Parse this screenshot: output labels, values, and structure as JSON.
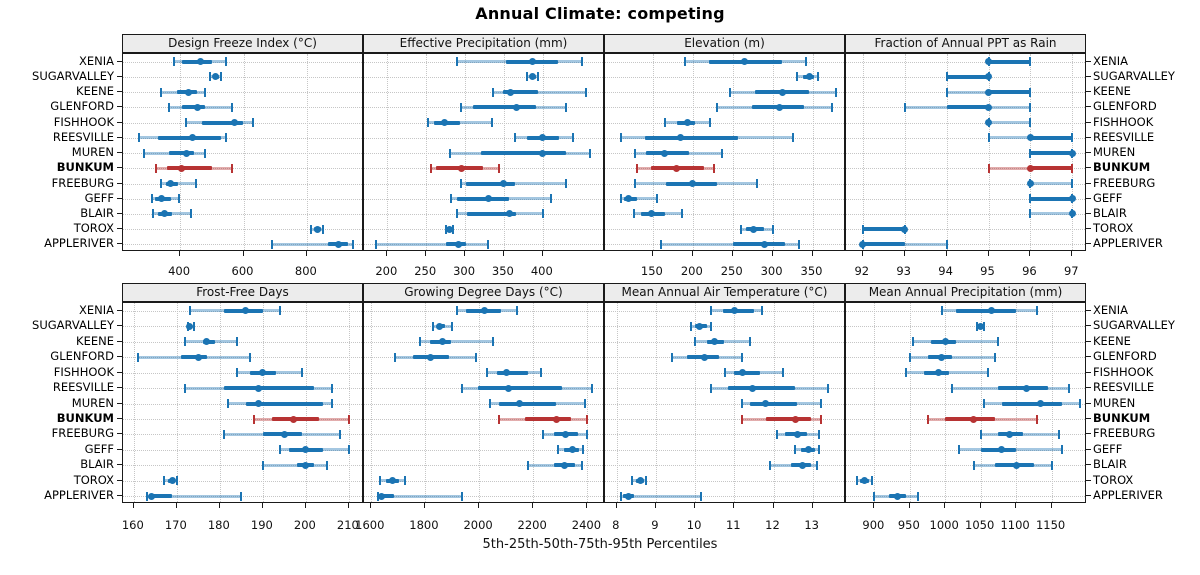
{
  "title": "Annual Climate: competing",
  "caption": "5th-25th-50th-75th-95th Percentiles",
  "stations": [
    "XENIA",
    "SUGARVALLEY",
    "KEENE",
    "GLENFORD",
    "FISHHOOK",
    "REESVILLE",
    "MUREN",
    "BUNKUM",
    "FREEBURG",
    "GEFF",
    "BLAIR",
    "TOROX",
    "APPLERIVER"
  ],
  "highlight_station": "BUNKUM",
  "highlight_index": 7,
  "percentiles": [
    "5th",
    "25th",
    "50th",
    "75th",
    "95th"
  ],
  "colors": {
    "series": "#1b74b3",
    "series_light": "rgba(27,116,179,0.40)",
    "highlight": "#b73333",
    "highlight_light": "rgba(183,51,51,0.40)",
    "strip_bg": "#ececec",
    "panel_border": "#1a1a1a",
    "grid": "#c6c6c6",
    "text": "#111111"
  },
  "chart_data": [
    {
      "type": "interval-dotplot",
      "panel_title": "Design Freeze Index (°C)",
      "row": 0,
      "col": 0,
      "xlim": [
        220,
        980
      ],
      "ticks": [
        400,
        600,
        800
      ],
      "series": [
        [
          380,
          405,
          465,
          500,
          545
        ],
        [
          495,
          505,
          513,
          522,
          530
        ],
        [
          340,
          390,
          425,
          455,
          480
        ],
        [
          365,
          405,
          455,
          480,
          565
        ],
        [
          420,
          470,
          570,
          600,
          630
        ],
        [
          270,
          330,
          440,
          530,
          545
        ],
        [
          285,
          365,
          420,
          445,
          480
        ],
        [
          325,
          360,
          405,
          500,
          565
        ],
        [
          340,
          355,
          370,
          395,
          450
        ],
        [
          310,
          320,
          340,
          370,
          395
        ],
        [
          315,
          330,
          350,
          375,
          435
        ],
        [
          812,
          822,
          832,
          843,
          850
        ],
        [
          690,
          865,
          900,
          930,
          945
        ]
      ]
    },
    {
      "type": "interval-dotplot",
      "panel_title": "Effective Precipitation (mm)",
      "row": 0,
      "col": 1,
      "xlim": [
        170,
        480
      ],
      "ticks": [
        200,
        250,
        300,
        350,
        400
      ],
      "series": [
        [
          290,
          353,
          387,
          420,
          450
        ],
        [
          379,
          384,
          387,
          391,
          394
        ],
        [
          336,
          349,
          359,
          394,
          456
        ],
        [
          295,
          310,
          366,
          392,
          430
        ],
        [
          252,
          260,
          273,
          293,
          335
        ],
        [
          364,
          379,
          400,
          421,
          439
        ],
        [
          280,
          320,
          400,
          430,
          460
        ],
        [
          256,
          263,
          295,
          323,
          344
        ],
        [
          295,
          301,
          349,
          364,
          430
        ],
        [
          282,
          290,
          330,
          357,
          410
        ],
        [
          290,
          303,
          357,
          366,
          400
        ],
        [
          275,
          277,
          280,
          282,
          284
        ],
        [
          185,
          275,
          291,
          301,
          330
        ]
      ]
    },
    {
      "type": "interval-dotplot",
      "panel_title": "Elevation (m)",
      "row": 0,
      "col": 2,
      "xlim": [
        90,
        392
      ],
      "ticks": [
        150,
        200,
        250,
        300,
        350
      ],
      "series": [
        [
          190,
          220,
          265,
          312,
          342
        ],
        [
          330,
          338,
          346,
          352,
          357
        ],
        [
          246,
          278,
          312,
          346,
          380
        ],
        [
          230,
          274,
          308,
          340,
          374
        ],
        [
          165,
          180,
          193,
          203,
          222
        ],
        [
          110,
          140,
          184,
          257,
          325
        ],
        [
          128,
          141,
          164,
          195,
          237
        ],
        [
          130,
          148,
          179,
          214,
          227
        ],
        [
          128,
          167,
          200,
          231,
          280
        ],
        [
          110,
          114,
          119,
          130,
          155
        ],
        [
          126,
          135,
          148,
          165,
          186
        ],
        [
          260,
          267,
          276,
          289,
          300
        ],
        [
          160,
          250,
          290,
          316,
          333
        ]
      ]
    },
    {
      "type": "interval-dotplot",
      "panel_title": "Fraction of Annual PPT as Rain",
      "row": 0,
      "col": 3,
      "xlim": [
        91.6,
        97.35
      ],
      "ticks": [
        92,
        93,
        94,
        95,
        96,
        97
      ],
      "series": [
        [
          95,
          95,
          95,
          96,
          96
        ],
        [
          94,
          94,
          95,
          95,
          95
        ],
        [
          94,
          95,
          95,
          96,
          96
        ],
        [
          93,
          94,
          95,
          95,
          96
        ],
        [
          95,
          95,
          95,
          95,
          96
        ],
        [
          95,
          96,
          96,
          97,
          97
        ],
        [
          96,
          96,
          97,
          97,
          97
        ],
        [
          95,
          96,
          96,
          97,
          97
        ],
        [
          96,
          96,
          96,
          96,
          97
        ],
        [
          96,
          96,
          97,
          97,
          97
        ],
        [
          96,
          97,
          97,
          97,
          97
        ],
        [
          92,
          92,
          93,
          93,
          93
        ],
        [
          92,
          92,
          92,
          93,
          94
        ]
      ]
    },
    {
      "type": "interval-dotplot",
      "panel_title": "Frost-Free Days",
      "row": 1,
      "col": 0,
      "xlim": [
        157.5,
        213.5
      ],
      "ticks": [
        160,
        170,
        180,
        190,
        200,
        210
      ],
      "series": [
        [
          173,
          181,
          186,
          190,
          194
        ],
        [
          172.5,
          173,
          173,
          173.5,
          174
        ],
        [
          172,
          176,
          177,
          179,
          184
        ],
        [
          161,
          171,
          175,
          177,
          187
        ],
        [
          184,
          187,
          190,
          193,
          199
        ],
        [
          172,
          181,
          189,
          202,
          206
        ],
        [
          182,
          186,
          189,
          204,
          206
        ],
        [
          188,
          192,
          197,
          203,
          210
        ],
        [
          181,
          190,
          195,
          199,
          208
        ],
        [
          194,
          196,
          200,
          204,
          210
        ],
        [
          190,
          198,
          200,
          202,
          205
        ],
        [
          167,
          168,
          169,
          169.5,
          170
        ],
        [
          163,
          163.5,
          164,
          169,
          185
        ]
      ]
    },
    {
      "type": "interval-dotplot",
      "panel_title": "Growing Degree Days (°C)",
      "row": 1,
      "col": 1,
      "xlim": [
        1575,
        2465
      ],
      "ticks": [
        1600,
        1800,
        2000,
        2200,
        2400
      ],
      "series": [
        [
          1920,
          1950,
          2020,
          2080,
          2140
        ],
        [
          1830,
          1845,
          1855,
          1875,
          1900
        ],
        [
          1780,
          1820,
          1865,
          1895,
          2050
        ],
        [
          1690,
          1755,
          1820,
          1890,
          1990
        ],
        [
          2030,
          2065,
          2100,
          2180,
          2230
        ],
        [
          1935,
          1995,
          2110,
          2305,
          2415
        ],
        [
          2040,
          2075,
          2150,
          2285,
          2390
        ],
        [
          2075,
          2170,
          2285,
          2340,
          2400
        ],
        [
          2235,
          2275,
          2320,
          2365,
          2400
        ],
        [
          2290,
          2315,
          2345,
          2370,
          2385
        ],
        [
          2180,
          2275,
          2315,
          2355,
          2380
        ],
        [
          1635,
          1655,
          1680,
          1705,
          1725
        ],
        [
          1625,
          1630,
          1640,
          1685,
          1935
        ]
      ]
    },
    {
      "type": "interval-dotplot",
      "panel_title": "Mean Annual Air Temperature (°C)",
      "row": 1,
      "col": 2,
      "xlim": [
        7.7,
        13.85
      ],
      "ticks": [
        8,
        9,
        10,
        11,
        12,
        13
      ],
      "series": [
        [
          10.4,
          10.7,
          11.0,
          11.5,
          11.7
        ],
        [
          9.9,
          10.0,
          10.1,
          10.3,
          10.4
        ],
        [
          10.0,
          10.3,
          10.5,
          10.75,
          11.4
        ],
        [
          9.4,
          9.8,
          10.25,
          10.6,
          11.2
        ],
        [
          10.75,
          11.0,
          11.2,
          11.65,
          12.25
        ],
        [
          10.4,
          10.85,
          11.45,
          12.55,
          13.4
        ],
        [
          11.2,
          11.4,
          11.8,
          12.6,
          13.2
        ],
        [
          11.2,
          11.8,
          12.55,
          12.95,
          13.2
        ],
        [
          12.1,
          12.3,
          12.6,
          12.85,
          13.15
        ],
        [
          12.55,
          12.7,
          12.9,
          13.05,
          13.15
        ],
        [
          11.9,
          12.45,
          12.75,
          12.95,
          13.1
        ],
        [
          8.4,
          8.5,
          8.6,
          8.7,
          8.75
        ],
        [
          8.1,
          8.15,
          8.3,
          8.45,
          10.15
        ]
      ]
    },
    {
      "type": "interval-dotplot",
      "panel_title": "Mean Annual Precipitation (mm)",
      "row": 1,
      "col": 3,
      "xlim": [
        860,
        1200
      ],
      "ticks": [
        900,
        950,
        1000,
        1050,
        1100,
        1150
      ],
      "series": [
        [
          995,
          1015,
          1065,
          1100,
          1130
        ],
        [
          1045,
          1048,
          1050,
          1052,
          1055
        ],
        [
          955,
          980,
          1000,
          1015,
          1075
        ],
        [
          950,
          975,
          995,
          1010,
          1070
        ],
        [
          945,
          970,
          990,
          1005,
          1060
        ],
        [
          1010,
          1075,
          1115,
          1145,
          1175
        ],
        [
          1055,
          1080,
          1135,
          1165,
          1190
        ],
        [
          975,
          1000,
          1040,
          1070,
          1130
        ],
        [
          1050,
          1075,
          1090,
          1110,
          1160
        ],
        [
          1020,
          1050,
          1080,
          1100,
          1165
        ],
        [
          1040,
          1070,
          1100,
          1125,
          1150
        ],
        [
          875,
          880,
          886,
          892,
          896
        ],
        [
          900,
          920,
          932,
          945,
          962
        ]
      ]
    }
  ]
}
